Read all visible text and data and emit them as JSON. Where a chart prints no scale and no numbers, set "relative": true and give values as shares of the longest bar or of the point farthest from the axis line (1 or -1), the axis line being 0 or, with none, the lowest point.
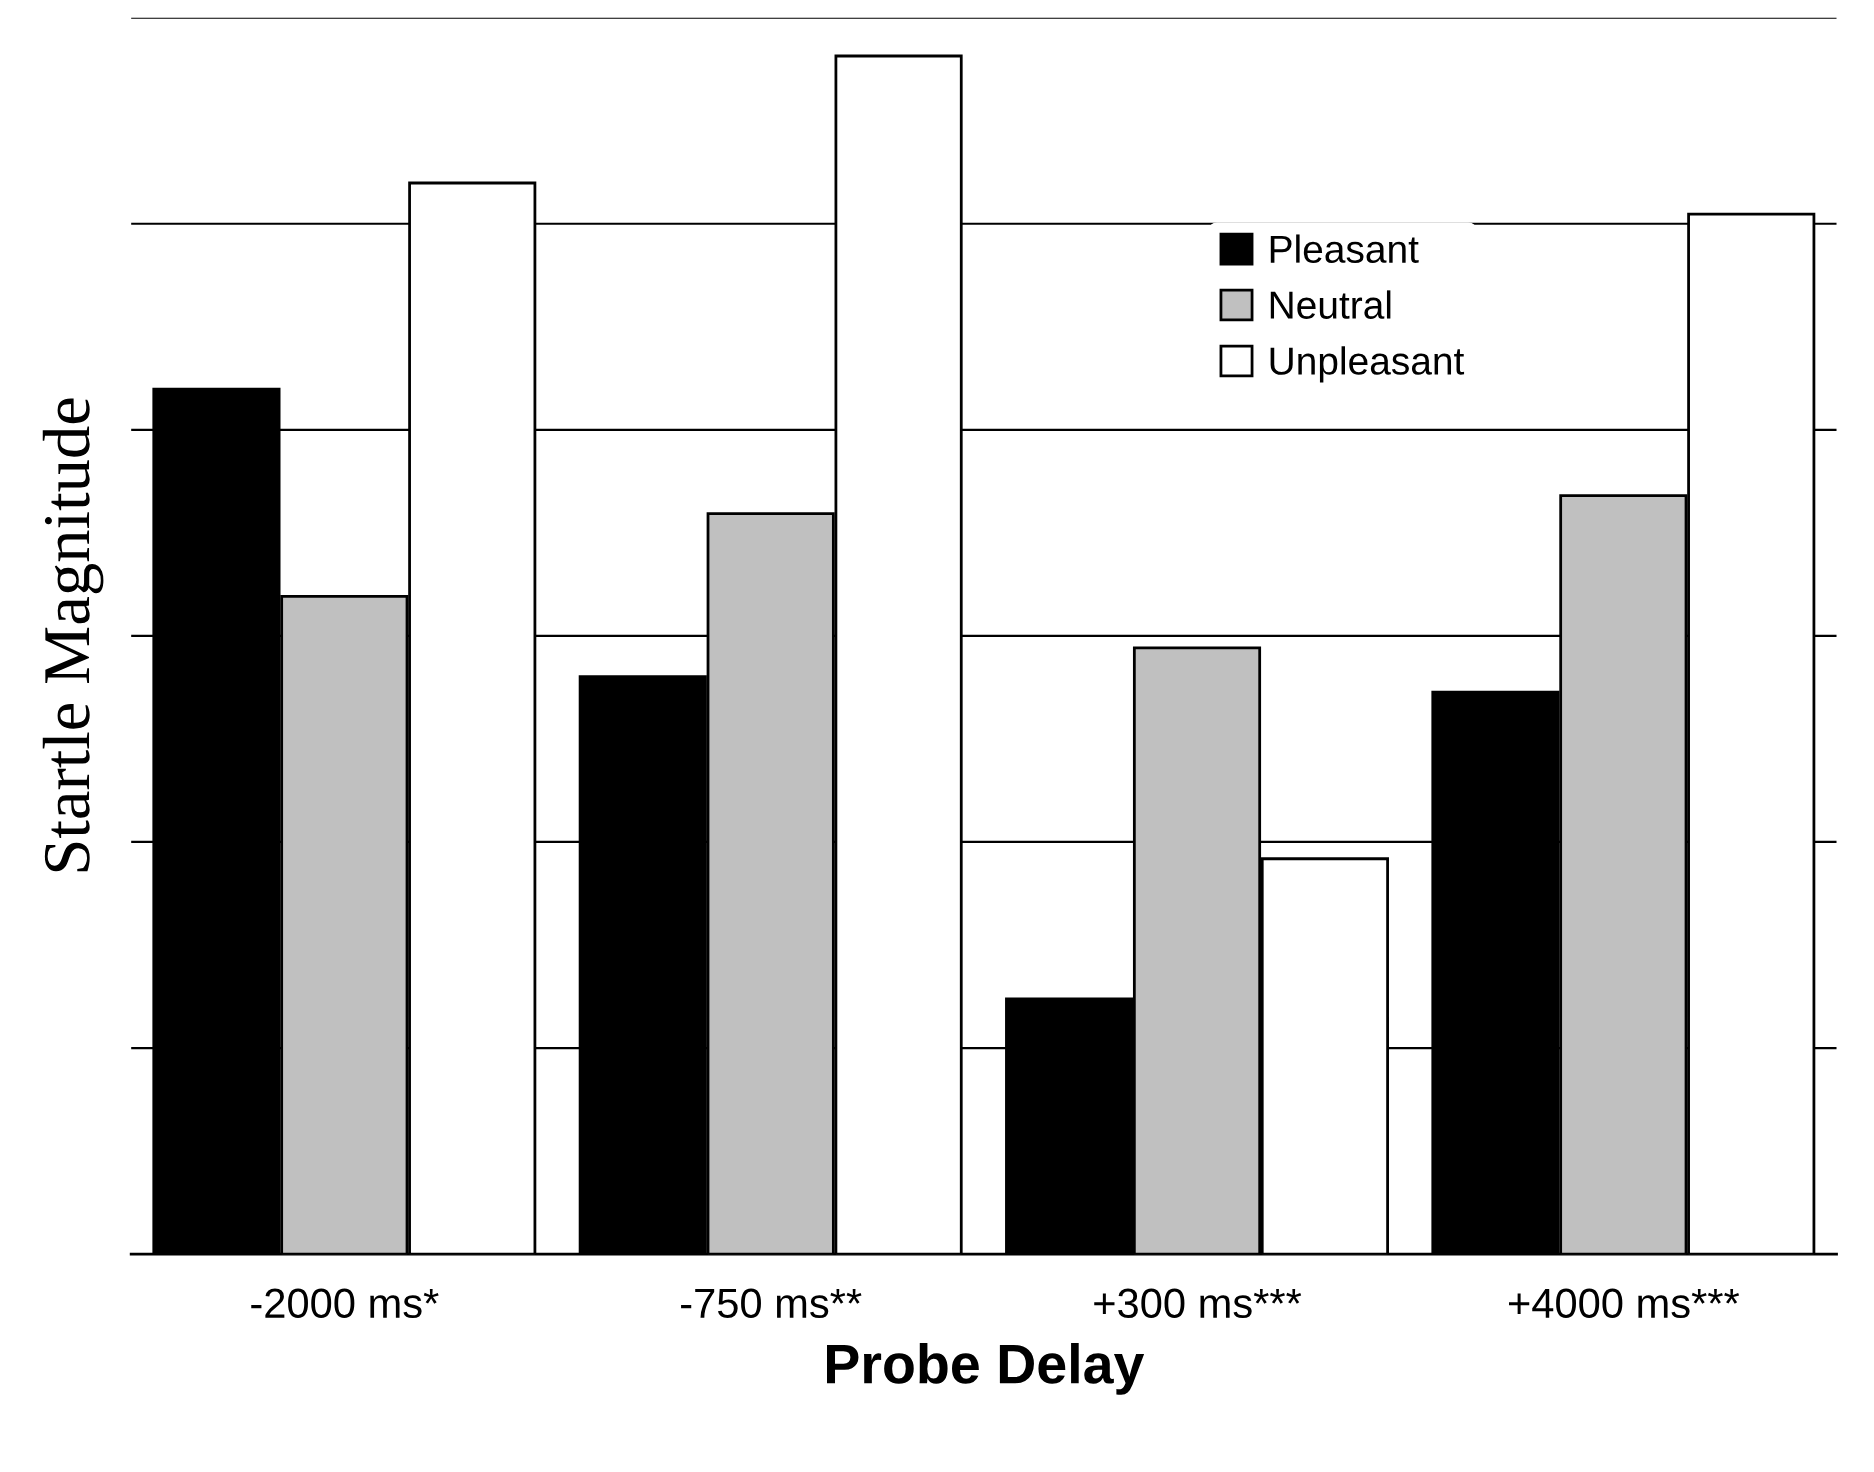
{
  "chart_data": {
    "type": "bar",
    "relative": true,
    "xlabel": "Probe Delay",
    "ylabel": "Startle Magnitude",
    "categories": [
      "-2000 ms*",
      "-750 ms**",
      "+300 ms***",
      "+4000 ms***"
    ],
    "series": [
      {
        "name": "Pleasant",
        "color": "#000000",
        "values": [
          0.722,
          0.482,
          0.213,
          0.469
        ]
      },
      {
        "name": "Neutral",
        "color": "#c0c0c0",
        "values": [
          0.549,
          0.618,
          0.506,
          0.633
        ]
      },
      {
        "name": "Unpleasant",
        "color": "#ffffff",
        "values": [
          0.894,
          1.0,
          0.33,
          0.868
        ]
      }
    ],
    "grid": "y",
    "legend": "top right",
    "tick_labels": "x"
  }
}
